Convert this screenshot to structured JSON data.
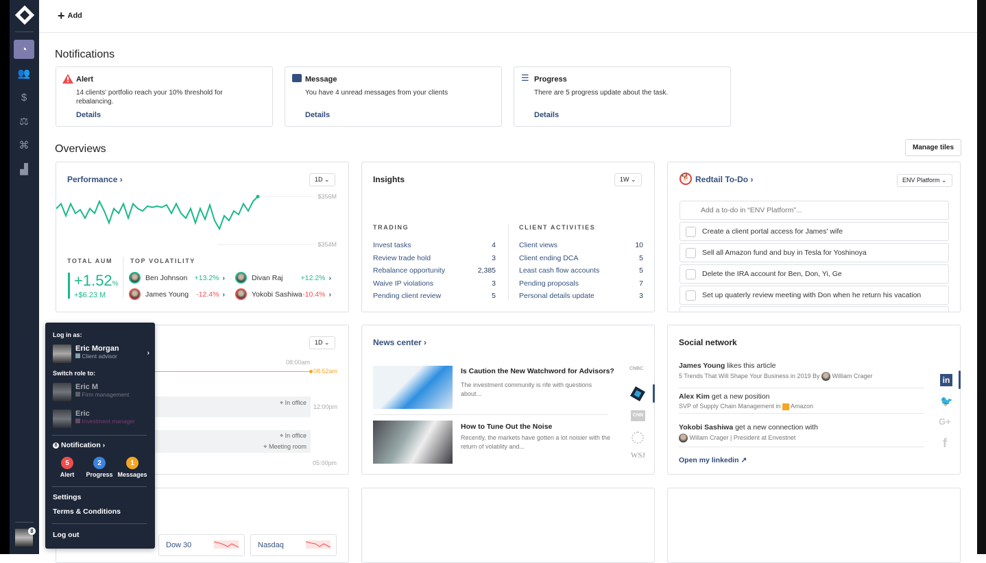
{
  "topbar": {
    "add_label": "Add"
  },
  "sidebar": {
    "items": [
      "dashboard-icon",
      "clients-icon",
      "money-hands-icon",
      "scale-icon",
      "binoculars-icon",
      "chart-icon"
    ]
  },
  "notifications": {
    "title": "Notifications",
    "cards": [
      {
        "title": "Alert",
        "text": "14 clients' portfolio reach your 10% threshold for rebalancing.",
        "link": "Details",
        "icon": "alert-triangle-icon",
        "color": "#f04c4c"
      },
      {
        "title": "Message",
        "text": "You have 4 unread messages from your clients",
        "link": "Details",
        "icon": "message-icon",
        "color": "#34507e"
      },
      {
        "title": "Progress",
        "text": "There are 5 progress update about the task.",
        "link": "Details",
        "icon": "checklist-icon",
        "color": "#34507e"
      }
    ]
  },
  "overviews": {
    "title": "Overviews",
    "manage_label": "Manage tiles"
  },
  "performance": {
    "title": "Performance ›",
    "period": "1D ⌄",
    "total_aum_label": "TOTAL AUM",
    "aum_pct": "+1.52",
    "aum_pct_sign": "%",
    "aum_value": "+$6.23 M",
    "volatility_label": "TOP VOLATILITY",
    "people": [
      {
        "name": "Ben Johnson",
        "change": "+13.2%"
      },
      {
        "name": "Divan Raj",
        "change": "+12.2%"
      },
      {
        "name": "James Young",
        "change": "-12.4%"
      },
      {
        "name": "Yokobi Sashiwa",
        "change": "-10.4%"
      }
    ]
  },
  "chart_data": {
    "type": "line",
    "ylabels": [
      "$356M",
      "$354M"
    ],
    "ylim": [
      354,
      356
    ],
    "values": [
      355.5,
      355.7,
      355.2,
      355.7,
      355.3,
      355.45,
      355.1,
      355.5,
      355.3,
      355.8,
      355.4,
      354.9,
      355.5,
      355.3,
      355.7,
      355.1,
      355.7,
      355.5,
      355.4,
      355.6,
      355.55,
      355.6,
      355.55,
      355.65,
      355.3,
      355.7,
      355.3,
      355.1,
      355.5,
      354.9,
      355.5,
      355.05,
      355.65,
      355.0,
      354.65,
      355.2,
      355.0,
      355.4,
      355.25,
      355.7,
      355.4,
      355.8,
      356.0
    ],
    "color": "#1bb88a"
  },
  "insights": {
    "title": "Insights",
    "period": "1W ⌄",
    "trading_label": "TRADING",
    "client_label": "CLIENT ACTIVITIES",
    "trading": [
      {
        "label": "Invest tasks",
        "value": "4"
      },
      {
        "label": "Review trade hold",
        "value": "3"
      },
      {
        "label": "Rebalance opportunity",
        "value": "2,385"
      },
      {
        "label": "Waive IP violations",
        "value": "3"
      },
      {
        "label": "Pending client review",
        "value": "5"
      }
    ],
    "client": [
      {
        "label": "Client views",
        "value": "10"
      },
      {
        "label": "Client ending DCA",
        "value": "5"
      },
      {
        "label": "Least cash flow accounts",
        "value": "5"
      },
      {
        "label": "Pending proposals",
        "value": "7"
      },
      {
        "label": "Personal details update",
        "value": "3"
      }
    ]
  },
  "todo": {
    "title": "Redtail To-Do ›",
    "platform": "ENV Platform ⌄",
    "placeholder": "Add a to-do in “ENV Platform”...",
    "items": [
      "Create a client portal access for James' wife",
      "Sell all Amazon fund and buy in Tesla for Yoshinoya",
      "Delete the IRA account for Ben, Don, Yi, Ge",
      "Set up quaterly review meeting with Don when he return his vacation"
    ]
  },
  "schedule": {
    "period": "1D ⌄",
    "times": [
      "08:00am",
      "08:52am",
      "12:00pm",
      "05:00pm"
    ],
    "events": [
      "In office",
      "In office",
      "Meeting room"
    ]
  },
  "news": {
    "title": "News center ›",
    "items": [
      {
        "title": "Is Caution the New Watchword for Advisors?",
        "text": "The investment community is rife with questions about..."
      },
      {
        "title": "How to Tune Out the Noise",
        "text": "Recently, the markets have gotten a lot noisier with the return of volatility and..."
      }
    ],
    "sources": [
      "CNBC",
      "Envestnet",
      "CNN",
      "Source",
      "WSJ"
    ]
  },
  "social": {
    "title": "Social network",
    "items": [
      {
        "name": "James Young",
        "action": "likes this article",
        "sub": "5 Trends That Will Shape Your Business in 2019 By",
        "who": "William Crager"
      },
      {
        "name": "Alex Kim",
        "action": "get a new position",
        "sub": "SVP of Supply Chain Management in",
        "who": "Amazon"
      },
      {
        "name": "Yokobi Sashiwa",
        "action": "get a new connection with",
        "sub": "",
        "who": "Willam Crager | President at Envestnet"
      }
    ],
    "link": "Open my linkedin"
  },
  "markets": [
    {
      "name": "Dow 30"
    },
    {
      "name": "Nasdaq"
    }
  ],
  "user_menu": {
    "login_as": "Log in as:",
    "user": {
      "name": "Eric Morgan",
      "role": "Client advisor",
      "role_color": "#7fa4a6"
    },
    "switch_label": "Switch role to:",
    "roles": [
      {
        "name": "Eric M",
        "role": "Firm management",
        "role_color": "#888"
      },
      {
        "name": "Eric",
        "role": "Investment manager",
        "role_color": "#8a6a7a"
      }
    ],
    "notification_label": "Notification ›",
    "notification_count": "8",
    "badges": [
      {
        "count": "5",
        "label": "Alert",
        "color": "#f04c4c"
      },
      {
        "count": "2",
        "label": "Progress",
        "color": "#3a84e0"
      },
      {
        "count": "1",
        "label": "Messages",
        "color": "#f5a623"
      }
    ],
    "settings": "Settings",
    "terms": "Terms & Conditions",
    "logout": "Log out",
    "avatar_badge": "8"
  }
}
